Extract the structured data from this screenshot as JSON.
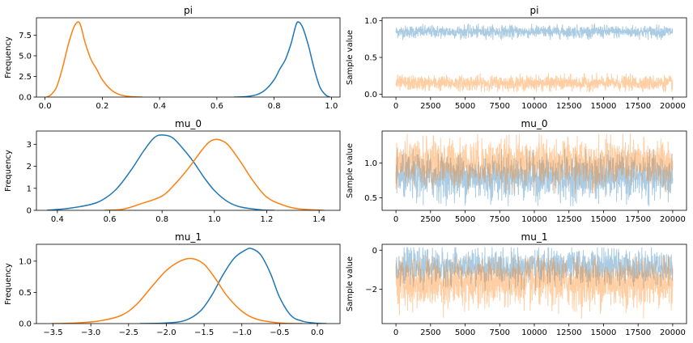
{
  "colors": {
    "c0": "#1f77b4",
    "c1": "#ff7f0e"
  },
  "chart_data": [
    {
      "type": "line",
      "kind": "density",
      "title": "pi",
      "ylabel": "Frequency",
      "xlim": [
        -0.03,
        1.03
      ],
      "ylim": [
        0,
        9.6
      ],
      "xticks": [
        0.0,
        0.2,
        0.4,
        0.6,
        0.8,
        1.0
      ],
      "xtick_labels": [
        "0.0",
        "0.2",
        "0.4",
        "0.6",
        "0.8",
        "1.0"
      ],
      "yticks": [
        0.0,
        2.5,
        5.0,
        7.5
      ],
      "ytick_labels": [
        "0.0",
        "2.5",
        "5.0",
        "7.5"
      ],
      "series": [
        {
          "color": "#1f77b4",
          "points": [
            [
              0.66,
              0
            ],
            [
              0.7,
              0.05
            ],
            [
              0.74,
              0.3
            ],
            [
              0.77,
              0.9
            ],
            [
              0.8,
              2.1
            ],
            [
              0.82,
              3.4
            ],
            [
              0.84,
              4.6
            ],
            [
              0.86,
              6.6
            ],
            [
              0.875,
              8.6
            ],
            [
              0.885,
              9.1
            ],
            [
              0.9,
              8.4
            ],
            [
              0.92,
              6.2
            ],
            [
              0.94,
              3.4
            ],
            [
              0.96,
              1.2
            ],
            [
              0.98,
              0.25
            ],
            [
              0.995,
              0
            ]
          ]
        },
        {
          "color": "#ff7f0e",
          "points": [
            [
              0.005,
              0
            ],
            [
              0.02,
              0.25
            ],
            [
              0.04,
              1.2
            ],
            [
              0.06,
              3.4
            ],
            [
              0.08,
              6.2
            ],
            [
              0.1,
              8.4
            ],
            [
              0.115,
              9.1
            ],
            [
              0.125,
              8.6
            ],
            [
              0.14,
              6.6
            ],
            [
              0.16,
              4.6
            ],
            [
              0.18,
              3.4
            ],
            [
              0.2,
              2.1
            ],
            [
              0.23,
              0.9
            ],
            [
              0.26,
              0.3
            ],
            [
              0.3,
              0.05
            ],
            [
              0.34,
              0
            ]
          ]
        }
      ]
    },
    {
      "type": "line",
      "kind": "trace",
      "title": "pi",
      "ylabel": "Sample value",
      "xlim": [
        -1000,
        21000
      ],
      "ylim": [
        -0.04,
        1.04
      ],
      "xticks": [
        0,
        2500,
        5000,
        7500,
        10000,
        12500,
        15000,
        17500,
        20000
      ],
      "xtick_labels": [
        "0",
        "2500",
        "5000",
        "7500",
        "10000",
        "12500",
        "15000",
        "17500",
        "20000"
      ],
      "yticks": [
        0.0,
        0.5,
        1.0
      ],
      "ytick_labels": [
        "0.0",
        "0.5",
        "1.0"
      ],
      "samples": 20000,
      "series": [
        {
          "color": "#1f77b4",
          "center": 0.85,
          "low": 0.74,
          "high": 0.96
        },
        {
          "color": "#ff7f0e",
          "center": 0.15,
          "low": 0.03,
          "high": 0.29
        }
      ]
    },
    {
      "type": "line",
      "kind": "density",
      "title": "mu_0",
      "ylabel": "Frequency",
      "xlim": [
        0.32,
        1.48
      ],
      "ylim": [
        0,
        3.6
      ],
      "xticks": [
        0.4,
        0.6,
        0.8,
        1.0,
        1.2,
        1.4
      ],
      "xtick_labels": [
        "0.4",
        "0.6",
        "0.8",
        "1.0",
        "1.2",
        "1.4"
      ],
      "yticks": [
        0,
        1,
        2,
        3
      ],
      "ytick_labels": [
        "0",
        "1",
        "2",
        "3"
      ],
      "series": [
        {
          "color": "#1f77b4",
          "points": [
            [
              0.36,
              0
            ],
            [
              0.45,
              0.1
            ],
            [
              0.55,
              0.35
            ],
            [
              0.62,
              0.9
            ],
            [
              0.68,
              1.8
            ],
            [
              0.73,
              2.7
            ],
            [
              0.77,
              3.3
            ],
            [
              0.8,
              3.42
            ],
            [
              0.84,
              3.3
            ],
            [
              0.88,
              2.8
            ],
            [
              0.92,
              2.2
            ],
            [
              0.96,
              1.5
            ],
            [
              1.0,
              0.9
            ],
            [
              1.05,
              0.4
            ],
            [
              1.1,
              0.15
            ],
            [
              1.18,
              0.02
            ],
            [
              1.23,
              0
            ]
          ]
        },
        {
          "color": "#ff7f0e",
          "points": [
            [
              0.58,
              0
            ],
            [
              0.65,
              0.05
            ],
            [
              0.72,
              0.3
            ],
            [
              0.8,
              0.65
            ],
            [
              0.85,
              1.2
            ],
            [
              0.9,
              1.9
            ],
            [
              0.95,
              2.7
            ],
            [
              0.98,
              3.1
            ],
            [
              1.01,
              3.22
            ],
            [
              1.05,
              3.0
            ],
            [
              1.1,
              2.2
            ],
            [
              1.15,
              1.3
            ],
            [
              1.2,
              0.6
            ],
            [
              1.26,
              0.25
            ],
            [
              1.32,
              0.07
            ],
            [
              1.42,
              0
            ]
          ]
        }
      ]
    },
    {
      "type": "line",
      "kind": "trace",
      "title": "mu_0",
      "ylabel": "Sample value",
      "xlim": [
        -1000,
        21000
      ],
      "ylim": [
        0.32,
        1.46
      ],
      "xticks": [
        0,
        2500,
        5000,
        7500,
        10000,
        12500,
        15000,
        17500,
        20000
      ],
      "xtick_labels": [
        "0",
        "2500",
        "5000",
        "7500",
        "10000",
        "12500",
        "15000",
        "17500",
        "20000"
      ],
      "yticks": [
        0.5,
        1.0
      ],
      "ytick_labels": [
        "0.5",
        "1.0"
      ],
      "samples": 20000,
      "series": [
        {
          "color": "#1f77b4",
          "center": 0.8,
          "low": 0.38,
          "high": 1.2
        },
        {
          "color": "#ff7f0e",
          "center": 1.0,
          "low": 0.56,
          "high": 1.42
        }
      ]
    },
    {
      "type": "line",
      "kind": "density",
      "title": "mu_1",
      "ylabel": "Frequency",
      "xlim": [
        -3.72,
        0.3
      ],
      "ylim": [
        0,
        1.27
      ],
      "xticks": [
        -3.5,
        -3.0,
        -2.5,
        -2.0,
        -1.5,
        -1.0,
        -0.5,
        0.0
      ],
      "xtick_labels": [
        "−3.5",
        "−3.0",
        "−2.5",
        "−2.0",
        "−1.5",
        "−1.0",
        "−0.5",
        "0.0"
      ],
      "yticks": [
        0.0,
        0.5,
        1.0
      ],
      "ytick_labels": [
        "0.0",
        "0.5",
        "1.0"
      ],
      "series": [
        {
          "color": "#1f77b4",
          "points": [
            [
              -2.35,
              0
            ],
            [
              -2.0,
              0.01
            ],
            [
              -1.75,
              0.05
            ],
            [
              -1.55,
              0.2
            ],
            [
              -1.4,
              0.45
            ],
            [
              -1.25,
              0.78
            ],
            [
              -1.1,
              1.05
            ],
            [
              -0.95,
              1.18
            ],
            [
              -0.87,
              1.2
            ],
            [
              -0.75,
              1.1
            ],
            [
              -0.62,
              0.8
            ],
            [
              -0.5,
              0.42
            ],
            [
              -0.35,
              0.13
            ],
            [
              -0.2,
              0.04
            ],
            [
              -0.05,
              0.01
            ],
            [
              0.12,
              0
            ]
          ]
        },
        {
          "color": "#ff7f0e",
          "points": [
            [
              -3.52,
              0
            ],
            [
              -3.2,
              0.01
            ],
            [
              -2.9,
              0.04
            ],
            [
              -2.6,
              0.13
            ],
            [
              -2.4,
              0.3
            ],
            [
              -2.2,
              0.58
            ],
            [
              -2.0,
              0.85
            ],
            [
              -1.8,
              1.01
            ],
            [
              -1.65,
              1.04
            ],
            [
              -1.5,
              0.95
            ],
            [
              -1.35,
              0.72
            ],
            [
              -1.2,
              0.45
            ],
            [
              -1.0,
              0.2
            ],
            [
              -0.8,
              0.07
            ],
            [
              -0.5,
              0.01
            ],
            [
              -0.2,
              0
            ]
          ]
        }
      ]
    },
    {
      "type": "line",
      "kind": "trace",
      "title": "mu_1",
      "ylabel": "Sample value",
      "xlim": [
        -1000,
        21000
      ],
      "ylim": [
        -3.75,
        0.3
      ],
      "xticks": [
        0,
        2500,
        5000,
        7500,
        10000,
        12500,
        15000,
        17500,
        20000
      ],
      "xtick_labels": [
        "0",
        "2500",
        "5000",
        "7500",
        "10000",
        "12500",
        "15000",
        "17500",
        "20000"
      ],
      "yticks": [
        -2,
        0
      ],
      "ytick_labels": [
        "−2",
        "0"
      ],
      "samples": 20000,
      "series": [
        {
          "color": "#1f77b4",
          "center": -0.85,
          "low": -2.1,
          "high": 0.15
        },
        {
          "color": "#ff7f0e",
          "center": -1.65,
          "low": -3.5,
          "high": -0.3
        }
      ]
    }
  ]
}
